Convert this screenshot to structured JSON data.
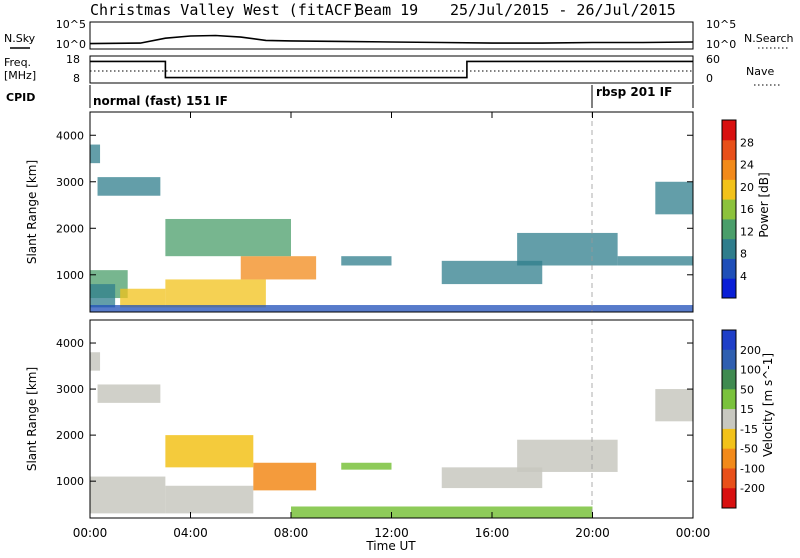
{
  "header": {
    "station": "Christmas Valley West (fitACF)",
    "beam": "Beam 19",
    "date_range": "25/Jul/2015 - 26/Jul/2015"
  },
  "colors": {
    "power_scale": [
      "#0a1fd6",
      "#1f4fb8",
      "#2f7d8c",
      "#4a9e6a",
      "#8cc23c",
      "#f2c21a",
      "#f28a1a",
      "#e8501a",
      "#d81010"
    ],
    "velocity_scale": [
      "#1f3fc8",
      "#2f5fb0",
      "#3f8a50",
      "#7ac23c",
      "#c8c8c0",
      "#f2c21a",
      "#f28a1a",
      "#e8501a",
      "#d81010"
    ],
    "velocity_grey": "#c8c8c0"
  },
  "chart_data": [
    {
      "type": "line",
      "name": "nsky-nsearch",
      "left_label": "N.Sky",
      "right_label": "N.Search",
      "left_ticks": [
        "10^5",
        "10^0"
      ],
      "right_ticks": [
        "10^5",
        "10^0"
      ],
      "x_hours": [
        0,
        2,
        3,
        4,
        5,
        6,
        7,
        8,
        10,
        12,
        14,
        16,
        18,
        20,
        22,
        24
      ],
      "values": [
        1.0,
        1.1,
        2.0,
        2.4,
        2.5,
        2.2,
        1.6,
        1.5,
        1.4,
        1.3,
        1.2,
        1.1,
        1.1,
        1.2,
        1.2,
        1.3
      ],
      "ylim": [
        0,
        5
      ]
    },
    {
      "type": "line",
      "name": "frequency-nave",
      "left_label": "Freq.",
      "left_unit": "[MHz]",
      "right_label": "Nave",
      "left_ticks": [
        "18",
        "8"
      ],
      "right_ticks": [
        "60",
        "0"
      ],
      "freq_x_hours": [
        0,
        3,
        3,
        15,
        15,
        24
      ],
      "freq_values": [
        16,
        16,
        10,
        10,
        16,
        16
      ],
      "ylim": [
        8,
        18
      ]
    },
    {
      "type": "table",
      "name": "cpid",
      "label": "CPID",
      "segments": [
        {
          "start_hour": 0,
          "end_hour": 20,
          "text": "normal (fast) 151 IF"
        },
        {
          "start_hour": 20,
          "end_hour": 24,
          "text": "rbsp 201 IF"
        }
      ]
    },
    {
      "type": "heatmap",
      "name": "power",
      "ylabel": "Slant Range [km]",
      "colorbar_label": "Power [dB]",
      "colorbar_ticks": [
        "4",
        "8",
        "12",
        "16",
        "20",
        "24",
        "28"
      ],
      "colorbar_range": [
        0,
        32
      ],
      "ylim": [
        200,
        4500
      ],
      "yticks": [
        "1000",
        "2000",
        "3000",
        "4000"
      ],
      "ytick_values": [
        1000,
        2000,
        3000,
        4000
      ],
      "patches": [
        {
          "t0": 0.0,
          "t1": 0.4,
          "r0": 3400,
          "r1": 3800,
          "level": 8
        },
        {
          "t0": 0.3,
          "t1": 2.8,
          "r0": 2700,
          "r1": 3100,
          "level": 8
        },
        {
          "t0": 0.0,
          "t1": 1.5,
          "r0": 500,
          "r1": 1100,
          "level": 14
        },
        {
          "t0": 0.0,
          "t1": 1.0,
          "r0": 300,
          "r1": 800,
          "level": 10
        },
        {
          "t0": 1.2,
          "t1": 3.0,
          "r0": 300,
          "r1": 700,
          "level": 18
        },
        {
          "t0": 3.0,
          "t1": 7.0,
          "r0": 300,
          "r1": 900,
          "level": 20
        },
        {
          "t0": 6.0,
          "t1": 9.0,
          "r0": 900,
          "r1": 1400,
          "level": 22
        },
        {
          "t0": 3.0,
          "t1": 8.0,
          "r0": 1400,
          "r1": 2200,
          "level": 12
        },
        {
          "t0": 10.0,
          "t1": 12.0,
          "r0": 1200,
          "r1": 1400,
          "level": 8
        },
        {
          "t0": 14.0,
          "t1": 18.0,
          "r0": 800,
          "r1": 1300,
          "level": 8
        },
        {
          "t0": 17.0,
          "t1": 21.0,
          "r0": 1200,
          "r1": 1900,
          "level": 8
        },
        {
          "t0": 21.0,
          "t1": 24.0,
          "r0": 1200,
          "r1": 1400,
          "level": 8
        },
        {
          "t0": 22.5,
          "t1": 24.0,
          "r0": 2300,
          "r1": 3000,
          "level": 10
        },
        {
          "t0": 0.0,
          "t1": 24.0,
          "r0": 200,
          "r1": 350,
          "level": 6
        }
      ]
    },
    {
      "type": "heatmap",
      "name": "velocity",
      "ylabel": "Slant Range [km]",
      "xlabel": "Time UT",
      "colorbar_label": "Velocity [m s^-1]",
      "colorbar_ticks": [
        "-200",
        "-100",
        "-50",
        "-15",
        "15",
        "50",
        "100",
        "200"
      ],
      "colorbar_values": [
        -200,
        -100,
        -50,
        -15,
        15,
        50,
        100,
        200
      ],
      "ylim": [
        200,
        4500
      ],
      "yticks": [
        "1000",
        "2000",
        "3000",
        "4000"
      ],
      "ytick_values": [
        1000,
        2000,
        3000,
        4000
      ],
      "xticks": [
        "00:00",
        "04:00",
        "08:00",
        "12:00",
        "16:00",
        "20:00",
        "00:00"
      ],
      "xtick_hours": [
        0,
        4,
        8,
        12,
        16,
        20,
        24
      ],
      "xlim_hours": [
        0,
        24
      ],
      "patches": [
        {
          "t0": 0.0,
          "t1": 0.4,
          "r0": 3400,
          "r1": 3800,
          "vel": 0
        },
        {
          "t0": 0.3,
          "t1": 2.8,
          "r0": 2700,
          "r1": 3100,
          "vel": 0
        },
        {
          "t0": 0.0,
          "t1": 3.0,
          "r0": 300,
          "r1": 1100,
          "vel": 0
        },
        {
          "t0": 3.0,
          "t1": 6.5,
          "r0": 300,
          "r1": 900,
          "vel": 0
        },
        {
          "t0": 6.5,
          "t1": 9.0,
          "r0": 800,
          "r1": 1400,
          "vel": -60
        },
        {
          "t0": 3.0,
          "t1": 6.5,
          "r0": 1300,
          "r1": 2000,
          "vel": -20
        },
        {
          "t0": 10.0,
          "t1": 12.0,
          "r0": 1250,
          "r1": 1400,
          "vel": 30
        },
        {
          "t0": 14.0,
          "t1": 18.0,
          "r0": 850,
          "r1": 1300,
          "vel": 0
        },
        {
          "t0": 17.0,
          "t1": 21.0,
          "r0": 1200,
          "r1": 1900,
          "vel": 0
        },
        {
          "t0": 22.5,
          "t1": 24.0,
          "r0": 2300,
          "r1": 3000,
          "vel": 0
        },
        {
          "t0": 8.0,
          "t1": 20.0,
          "r0": 200,
          "r1": 450,
          "vel": 25
        }
      ]
    }
  ]
}
